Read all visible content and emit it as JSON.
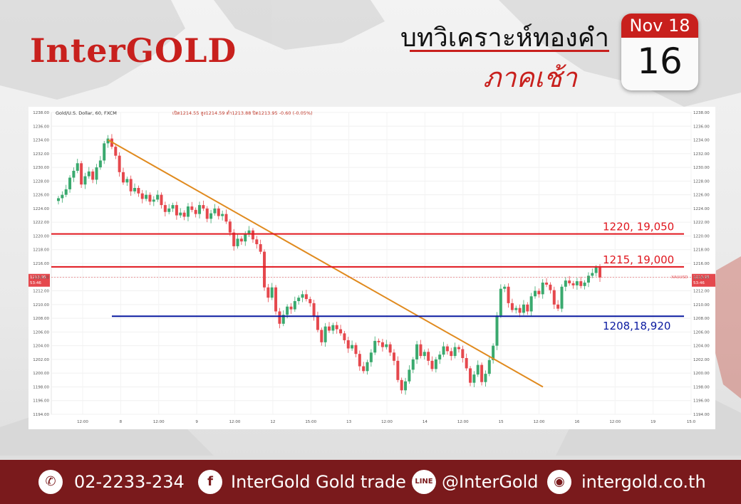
{
  "header": {
    "logo": "InterGOLD",
    "title": "บทวิเคราะห์ทองคำ",
    "subtitle": "ภาคเช้า",
    "calendar": {
      "month": "Nov 18",
      "day": "16"
    }
  },
  "footer": {
    "phone": "02-2233-234",
    "facebook": "InterGold Gold trade",
    "line": "@InterGold",
    "website": "intergold.co.th",
    "icons": [
      "phone-icon",
      "facebook-icon",
      "line-icon",
      "globe-icon"
    ]
  },
  "chart_data": {
    "type": "candlestick",
    "title": "Gold/U.S. Dollar, 60, FXCM",
    "ohlc_header": "เปิด1214.55 สูง1214.59 ต่ำ1213.88 ปิด1213.95 -0.60 (-0.05%)",
    "ylim": [
      1194,
      1238
    ],
    "yticks": [
      1194,
      1196,
      1198,
      1200,
      1202,
      1204,
      1206,
      1208,
      1210,
      1212,
      1214,
      1216,
      1218,
      1220,
      1222,
      1224,
      1226,
      1228,
      1230,
      1232,
      1234,
      1236,
      1238
    ],
    "xticks": [
      "12:00",
      "8",
      "12:00",
      "9",
      "12:00",
      "12",
      "15:00",
      "13",
      "12:00",
      "14",
      "12:00",
      "15",
      "12:00",
      "16",
      "12:00",
      "19",
      "15:0"
    ],
    "current_price": "1213.95",
    "countdown": "53:46",
    "symbol": "XAUUSD",
    "levels": [
      {
        "price": 1220.3,
        "label": "1220, 19,050",
        "color": "#e0161e"
      },
      {
        "price": 1215.5,
        "label": "1215, 19,000",
        "color": "#e0161e"
      },
      {
        "price": 1208.3,
        "label": "1208,18,920",
        "color": "#0a1aa0"
      }
    ],
    "trendline": {
      "from": [
        1234,
        1234
      ],
      "to": [
        1198,
        1198
      ],
      "color": "#e08a1e"
    },
    "colors": {
      "up": "#3aa96e",
      "down": "#e5484d"
    },
    "closes": [
      1225.5,
      1226,
      1226.8,
      1228.5,
      1229.5,
      1230.6,
      1227.5,
      1228.7,
      1229.4,
      1228.2,
      1230,
      1231,
      1233.5,
      1234.2,
      1233,
      1231.7,
      1229.3,
      1227.8,
      1228.3,
      1226.5,
      1227,
      1226.2,
      1225.4,
      1226,
      1225,
      1225.3,
      1226,
      1224.5,
      1223.5,
      1224,
      1224.5,
      1223,
      1223.4,
      1222.8,
      1224.3,
      1223.8,
      1223.2,
      1224.5,
      1224,
      1222.5,
      1223.3,
      1224,
      1222.9,
      1223.2,
      1222.1,
      1220.5,
      1218.5,
      1219.6,
      1219.2,
      1220.2,
      1220.8,
      1219.5,
      1218.8,
      1217.7,
      1212.5,
      1211,
      1212.5,
      1209,
      1207.2,
      1208.5,
      1209.7,
      1209.3,
      1210.5,
      1211,
      1211.5,
      1210.8,
      1210.2,
      1208.3,
      1206.3,
      1204.5,
      1206.8,
      1206.2,
      1207,
      1206.4,
      1205.8,
      1204.8,
      1203.6,
      1204.1,
      1202.8,
      1201,
      1200.3,
      1201.6,
      1203,
      1204.7,
      1204.5,
      1203.8,
      1204.2,
      1203,
      1201.8,
      1199,
      1197.5,
      1198.8,
      1200.5,
      1202,
      1204.2,
      1202.5,
      1203.1,
      1201.8,
      1200.6,
      1202,
      1202.7,
      1203.9,
      1203.2,
      1202.5,
      1203.8,
      1203.5,
      1202.2,
      1200.7,
      1198.6,
      1199.8,
      1201.2,
      1198.7,
      1199.9,
      1201.9,
      1204,
      1208.4,
      1212.3,
      1212.6,
      1210.2,
      1209.2,
      1209.5,
      1208.8,
      1210,
      1209,
      1211.2,
      1212,
      1211.5,
      1213.2,
      1212.9,
      1212.1,
      1210,
      1209.4,
      1212.6,
      1213.5,
      1213.1,
      1212.8,
      1213.4,
      1212.7,
      1213.2,
      1214.2,
      1214.6,
      1215.4,
      1213.95
    ]
  }
}
